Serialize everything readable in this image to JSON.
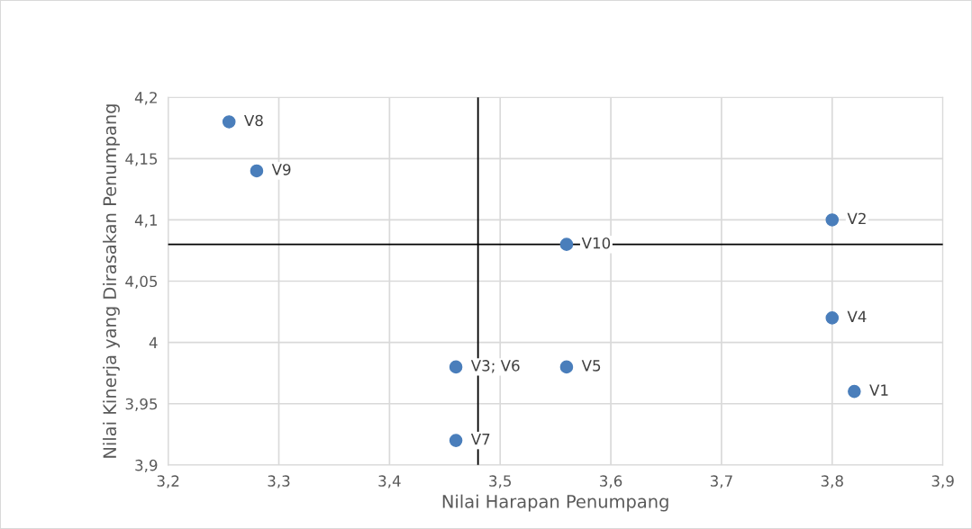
{
  "chart_data": {
    "type": "scatter",
    "xlabel": "Nilai Harapan Penumpang",
    "ylabel": "Nilai Kinerja yang Dirasakan Penumpang",
    "x": [
      3.82,
      3.8,
      3.46,
      3.8,
      3.56,
      3.46,
      3.255,
      3.28,
      3.56
    ],
    "series": [
      {
        "color": "#4a7ebb",
        "values": [
          3.96,
          4.1,
          3.98,
          4.02,
          3.98,
          3.92,
          4.18,
          4.14,
          4.08
        ]
      }
    ],
    "xlim": [
      3.2,
      3.9
    ],
    "ylim": [
      3.9,
      4.2
    ],
    "xticks": [
      {
        "value": 3.2,
        "label": "3,2"
      },
      {
        "value": 3.3,
        "label": "3,3"
      },
      {
        "value": 3.4,
        "label": "3,4"
      },
      {
        "value": 3.5,
        "label": "3,5"
      },
      {
        "value": 3.6,
        "label": "3,6"
      },
      {
        "value": 3.7,
        "label": "3,7"
      },
      {
        "value": 3.8,
        "label": "3,8"
      },
      {
        "value": 3.9,
        "label": "3,9"
      }
    ],
    "yticks": [
      {
        "value": 3.9,
        "label": "3,9"
      },
      {
        "value": 3.95,
        "label": "3,95"
      },
      {
        "value": 4,
        "label": "4"
      },
      {
        "value": 4.05,
        "label": "4,05"
      },
      {
        "value": 4.1,
        "label": "4,1"
      },
      {
        "value": 4.15,
        "label": "4,15"
      },
      {
        "value": 4.2,
        "label": "4,2"
      }
    ],
    "annotations": [
      {
        "text": "V1",
        "x": 3.82,
        "y": 3.96
      },
      {
        "text": "V2",
        "x": 3.8,
        "y": 4.1
      },
      {
        "text": "V3; V6",
        "x": 3.46,
        "y": 3.98
      },
      {
        "text": "V4",
        "x": 3.8,
        "y": 4.02
      },
      {
        "text": "V5",
        "x": 3.56,
        "y": 3.98
      },
      {
        "text": "V7",
        "x": 3.46,
        "y": 3.92
      },
      {
        "text": "V8",
        "x": 3.255,
        "y": 4.18
      },
      {
        "text": "V9",
        "x": 3.28,
        "y": 4.14
      },
      {
        "text": "V10",
        "x": 3.56,
        "y": 4.08
      }
    ],
    "ref_lines": [
      {
        "axis": "x",
        "value": 3.48,
        "color": "#000000"
      },
      {
        "axis": "y",
        "value": 4.08,
        "color": "#000000"
      }
    ],
    "grid": true,
    "marker": "circle",
    "legend": false
  }
}
